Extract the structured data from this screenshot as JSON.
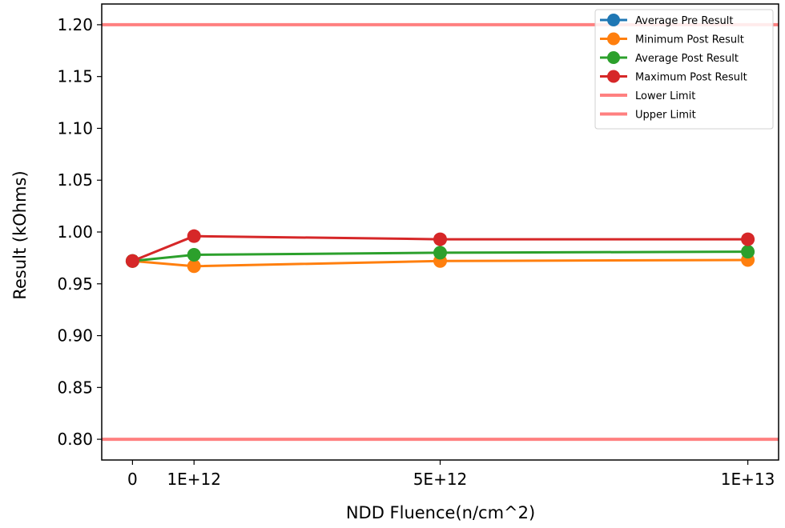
{
  "chart_data": {
    "type": "line",
    "xlabel": "NDD Fluence(n/cm^2)",
    "ylabel": "Result (kOhms)",
    "x_ticks": [
      {
        "value": 0,
        "label": "0"
      },
      {
        "value": 1000000000000.0,
        "label": "1E+12"
      },
      {
        "value": 5000000000000.0,
        "label": "5E+12"
      },
      {
        "value": 10000000000000.0,
        "label": "1E+13"
      }
    ],
    "y_ticks": [
      "0.80",
      "0.85",
      "0.90",
      "0.95",
      "1.00",
      "1.05",
      "1.10",
      "1.15",
      "1.20"
    ],
    "xlim": [
      -500000000000.0,
      10500000000000.0
    ],
    "ylim": [
      0.78,
      1.22
    ],
    "grid": false,
    "legend_position": "top-right",
    "series": [
      {
        "name": "Average Pre Result",
        "color": "#1f77b4",
        "style": "line-marker",
        "x": [
          0
        ],
        "y": [
          0.972
        ]
      },
      {
        "name": "Minimum Post Result",
        "color": "#ff7f0e",
        "style": "line-marker",
        "x": [
          0,
          1000000000000.0,
          5000000000000.0,
          10000000000000.0
        ],
        "y": [
          0.972,
          0.967,
          0.972,
          0.973
        ]
      },
      {
        "name": "Average Post Result",
        "color": "#2ca02c",
        "style": "line-marker",
        "x": [
          0,
          1000000000000.0,
          5000000000000.0,
          10000000000000.0
        ],
        "y": [
          0.972,
          0.978,
          0.98,
          0.981
        ]
      },
      {
        "name": "Maximum Post Result",
        "color": "#d62728",
        "style": "line-marker",
        "x": [
          0,
          1000000000000.0,
          5000000000000.0,
          10000000000000.0
        ],
        "y": [
          0.972,
          0.996,
          0.993,
          0.993
        ]
      },
      {
        "name": "Lower Limit",
        "color": "#ff8080",
        "style": "hline",
        "y_value": 0.8
      },
      {
        "name": "Upper Limit",
        "color": "#ff8080",
        "style": "hline",
        "y_value": 1.2
      }
    ]
  }
}
